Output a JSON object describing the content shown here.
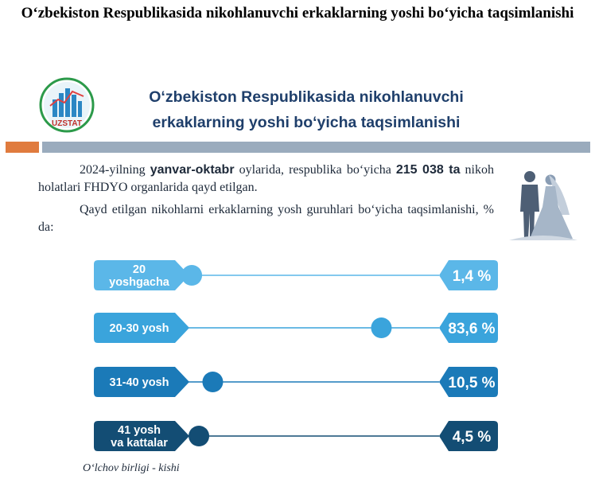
{
  "page_title": "O‘zbekiston Respublikasida nikohlanuvchi erkaklarning yoshi bo‘yicha taqsimlanishi",
  "header": {
    "logo_text": "UZSTAT",
    "title_line1": "O‘zbekiston Respublikasida nikohlanuvchi",
    "title_line2": "erkaklarning yoshi bo‘yicha taqsimlanishi"
  },
  "intro": {
    "p1_a": "2024-yilning ",
    "p1_b": "yanvar-oktabr",
    "p1_c": " oylarida, respublika bo‘yicha ",
    "p1_d": "215 038 ta",
    "p1_e": " nikoh holatlari FHDYO organlarida qayd etilgan.",
    "p2": "Qayd etilgan nikohlarni erkaklarning yosh guruhlari bo‘yicha taqsimlanishi, % da:"
  },
  "chart_data": {
    "type": "bar",
    "categories": [
      [
        "20",
        "yoshgacha"
      ],
      [
        "20-30 yosh"
      ],
      [
        "31-40 yosh"
      ],
      [
        "41 yosh",
        "va kattalar"
      ]
    ],
    "value_labels": [
      "1,4 %",
      "83,6 %",
      "10,5 %",
      "4,5 %"
    ],
    "values": [
      1.4,
      83.6,
      10.5,
      4.5
    ],
    "unit": "%",
    "colors": [
      "#5bb7e8",
      "#3aa4dc",
      "#1b7ab8",
      "#134d74"
    ]
  },
  "unit_note": "O‘lchov birligi - kishi"
}
